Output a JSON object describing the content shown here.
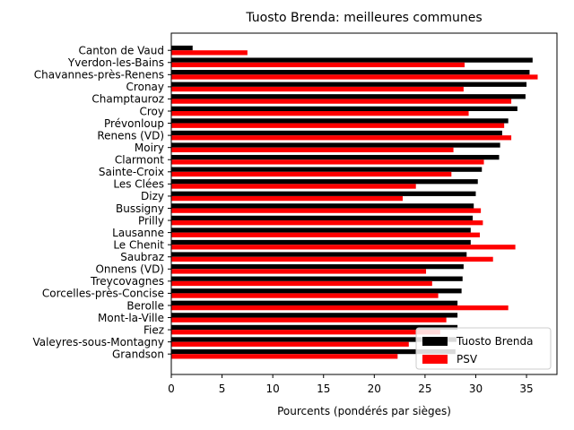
{
  "chart_data": {
    "type": "bar",
    "orientation": "horizontal",
    "title": "Tuosto Brenda: meilleures communes",
    "xlabel": "Pourcents (pondérés par sièges)",
    "ylabel": "",
    "xlim": [
      0,
      38
    ],
    "xticks": [
      0,
      5,
      10,
      15,
      20,
      25,
      30,
      35
    ],
    "grid": false,
    "legend_position": "lower-right",
    "categories": [
      "Canton de Vaud",
      "Yverdon-les-Bains",
      "Chavannes-près-Renens",
      "Cronay",
      "Champtauroz",
      "Croy",
      "Prévonloup",
      "Renens (VD)",
      "Moiry",
      "Clarmont",
      "Sainte-Croix",
      "Les Clées",
      "Dizy",
      "Bussigny",
      "Prilly",
      "Lausanne",
      "Le Chenit",
      "Saubraz",
      "Onnens (VD)",
      "Treycovagnes",
      "Corcelles-près-Concise",
      "Berolle",
      "Mont-la-Ville",
      "Fiez",
      "Valeyres-sous-Montagny",
      "Grandson"
    ],
    "series": [
      {
        "name": "Tuosto Brenda",
        "color": "#000000",
        "values": [
          2.1,
          35.6,
          35.3,
          35.0,
          34.9,
          34.1,
          33.2,
          32.6,
          32.4,
          32.3,
          30.6,
          30.2,
          30.0,
          29.8,
          29.7,
          29.5,
          29.5,
          29.1,
          28.8,
          28.7,
          28.6,
          28.2,
          28.2,
          28.2,
          28.1,
          28.0
        ]
      },
      {
        "name": "PSV",
        "color": "#ff0000",
        "values": [
          7.5,
          28.9,
          36.1,
          28.8,
          33.5,
          29.3,
          32.8,
          33.5,
          27.8,
          30.8,
          27.6,
          24.1,
          22.8,
          30.5,
          30.7,
          30.4,
          33.9,
          31.7,
          25.1,
          25.7,
          26.3,
          33.2,
          27.1,
          26.5,
          23.4,
          22.3
        ]
      }
    ]
  }
}
